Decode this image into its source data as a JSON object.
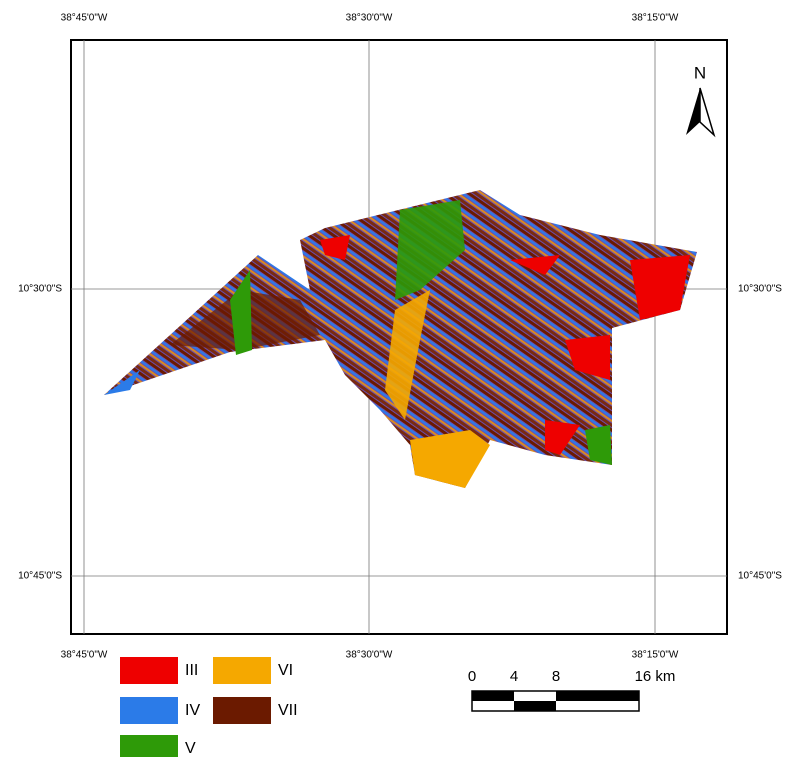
{
  "map": {
    "grid_labels": {
      "top": [
        "38°45'0\"W",
        "38°30'0\"W",
        "38°15'0\"W"
      ],
      "bottom": [
        "38°45'0\"W",
        "38°30'0\"W",
        "38°15'0\"W"
      ],
      "left": [
        "10°30'0\"S",
        "10°45'0\"S"
      ],
      "right": [
        "10°30'0\"S",
        "10°45'0\"S"
      ]
    },
    "north": "N",
    "legend": [
      {
        "label": "III",
        "color": "#ee0000"
      },
      {
        "label": "IV",
        "color": "#2b7be8"
      },
      {
        "label": "V",
        "color": "#2e9a08"
      },
      {
        "label": "VI",
        "color": "#f5a800"
      },
      {
        "label": "VII",
        "color": "#6b1a00"
      }
    ],
    "scale_bar": [
      "0",
      "4",
      "8",
      "16 km"
    ]
  }
}
